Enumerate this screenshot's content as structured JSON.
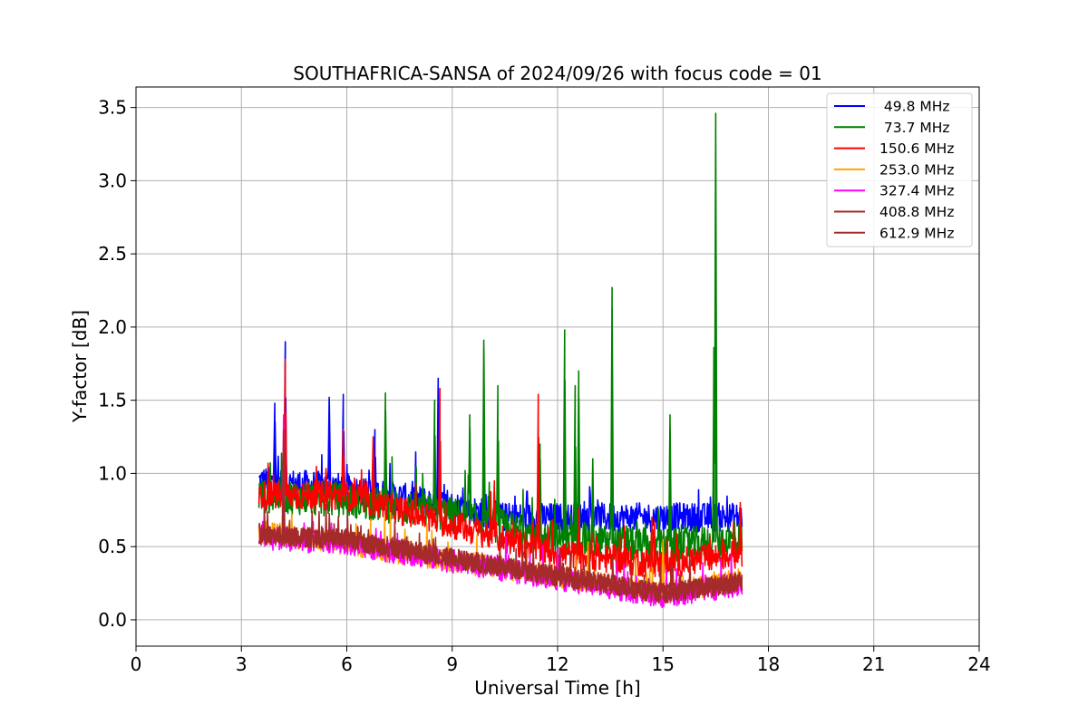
{
  "chart_data": {
    "type": "line",
    "title": "SOUTHAFRICA-SANSA of 2024/09/26 with focus code = 01",
    "xlabel": "Universal Time [h]",
    "ylabel": "Y-factor [dB]",
    "xlim": [
      0,
      24
    ],
    "ylim": [
      -0.18,
      3.64
    ],
    "x_ticks": [
      0,
      3,
      6,
      9,
      12,
      15,
      18,
      21,
      24
    ],
    "x_tick_labels": [
      "0",
      "3",
      "6",
      "9",
      "12",
      "15",
      "18",
      "21",
      "24"
    ],
    "y_ticks": [
      0.0,
      0.5,
      1.0,
      1.5,
      2.0,
      2.5,
      3.0,
      3.5
    ],
    "y_tick_labels": [
      "0.0",
      "0.5",
      "1.0",
      "1.5",
      "2.0",
      "2.5",
      "3.0",
      "3.5"
    ],
    "grid": true,
    "legend_position": "top-right",
    "series": [
      {
        "name": " 49.8 MHz",
        "color": "#0000ff",
        "x_range": [
          3.5,
          17.25
        ],
        "baseline": [
          [
            3.5,
            0.95
          ],
          [
            6.0,
            0.9
          ],
          [
            9.0,
            0.78
          ],
          [
            10.5,
            0.7
          ],
          [
            17.25,
            0.7
          ]
        ],
        "spread": 0.1,
        "spikes": [
          [
            4.25,
            1.9
          ],
          [
            3.95,
            1.48
          ],
          [
            5.5,
            1.52
          ],
          [
            5.9,
            1.54
          ],
          [
            8.6,
            1.65
          ],
          [
            6.8,
            1.3
          ]
        ]
      },
      {
        "name": " 73.7 MHz",
        "color": "#008000",
        "x_range": [
          3.5,
          17.25
        ],
        "baseline": [
          [
            3.5,
            0.85
          ],
          [
            6.0,
            0.82
          ],
          [
            9.0,
            0.72
          ],
          [
            12.0,
            0.55
          ],
          [
            15.0,
            0.5
          ],
          [
            17.25,
            0.55
          ]
        ],
        "spread": 0.12,
        "spikes": [
          [
            16.5,
            3.46
          ],
          [
            13.55,
            2.27
          ],
          [
            12.2,
            1.98
          ],
          [
            9.9,
            1.91
          ],
          [
            12.6,
            1.7
          ],
          [
            7.1,
            1.55
          ],
          [
            8.5,
            1.5
          ],
          [
            10.3,
            1.6
          ],
          [
            12.5,
            1.6
          ],
          [
            9.5,
            1.4
          ],
          [
            15.2,
            1.4
          ],
          [
            16.45,
            1.86
          ],
          [
            11.5,
            1.2
          ],
          [
            13.0,
            1.1
          ]
        ]
      },
      {
        "name": "150.6 MHz",
        "color": "#ff0000",
        "x_range": [
          3.5,
          17.25
        ],
        "baseline": [
          [
            3.5,
            0.85
          ],
          [
            6.0,
            0.85
          ],
          [
            9.0,
            0.65
          ],
          [
            12.0,
            0.45
          ],
          [
            15.0,
            0.38
          ],
          [
            17.25,
            0.45
          ]
        ],
        "spread": 0.1,
        "spikes": [
          [
            4.25,
            1.78
          ],
          [
            11.45,
            1.54
          ],
          [
            8.65,
            1.58
          ],
          [
            5.9,
            1.3
          ],
          [
            6.75,
            1.25
          ],
          [
            10.2,
            0.95
          ],
          [
            17.2,
            0.8
          ]
        ]
      },
      {
        "name": "253.0 MHz",
        "color": "#ffa500",
        "x_range": [
          3.5,
          17.25
        ],
        "baseline": [
          [
            3.5,
            0.6
          ],
          [
            6.0,
            0.52
          ],
          [
            9.0,
            0.4
          ],
          [
            12.0,
            0.3
          ],
          [
            15.0,
            0.18
          ],
          [
            17.25,
            0.28
          ]
        ],
        "spread": 0.08,
        "spikes": [
          [
            4.2,
            1.1
          ],
          [
            15.0,
            0.55
          ]
        ]
      },
      {
        "name": "327.4 MHz",
        "color": "#ff00ff",
        "x_range": [
          3.5,
          17.25
        ],
        "baseline": [
          [
            3.5,
            0.56
          ],
          [
            6.0,
            0.52
          ],
          [
            9.0,
            0.4
          ],
          [
            12.0,
            0.28
          ],
          [
            15.0,
            0.16
          ],
          [
            17.25,
            0.24
          ]
        ],
        "spread": 0.08,
        "spikes": [
          [
            4.2,
            1.4
          ]
        ]
      },
      {
        "name": "408.8 MHz",
        "color": "#a52a2a",
        "x_range": [
          3.5,
          17.25
        ],
        "baseline": [
          [
            3.5,
            0.58
          ],
          [
            6.0,
            0.55
          ],
          [
            9.0,
            0.42
          ],
          [
            12.0,
            0.3
          ],
          [
            15.0,
            0.18
          ],
          [
            17.25,
            0.26
          ]
        ],
        "spread": 0.07,
        "spikes": [
          [
            4.2,
            1.3
          ]
        ]
      },
      {
        "name": "612.9 MHz",
        "color": "#a52a2a",
        "x_range": [
          3.5,
          17.25
        ],
        "baseline": [
          [
            3.5,
            0.58
          ],
          [
            6.0,
            0.55
          ],
          [
            9.0,
            0.42
          ],
          [
            12.0,
            0.3
          ],
          [
            15.0,
            0.18
          ],
          [
            17.25,
            0.26
          ]
        ],
        "spread": 0.07,
        "spikes": []
      }
    ]
  }
}
